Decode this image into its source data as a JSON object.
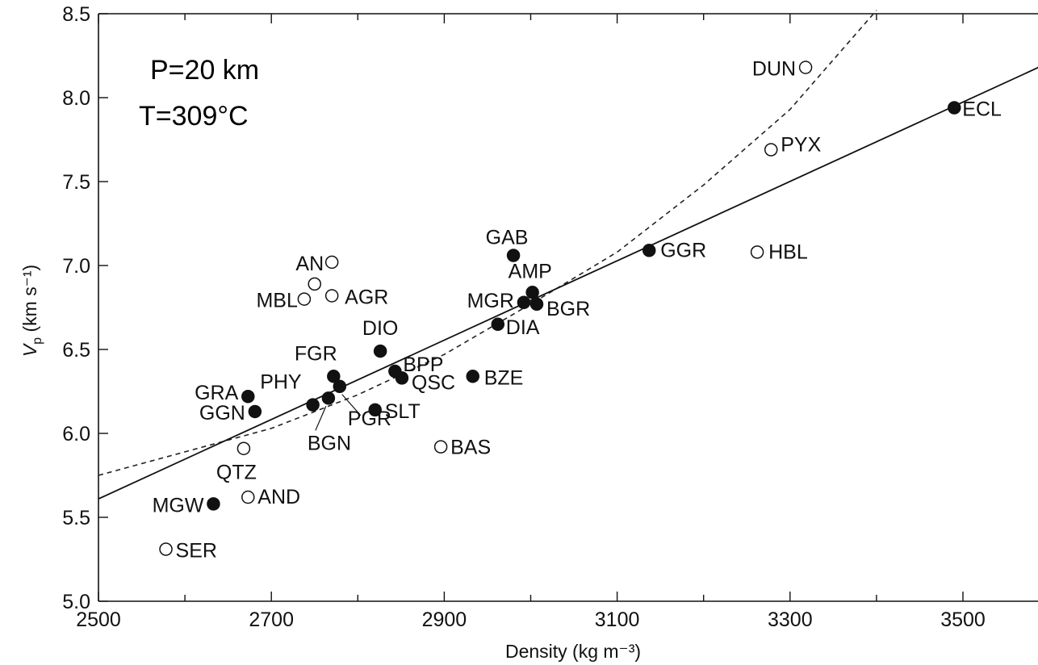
{
  "chart_data": {
    "type": "scatter",
    "xlabel": "Density (kg m⁻³)",
    "ylabel": "Vp (km s⁻¹)",
    "ylabel_main": "V",
    "ylabel_sub": "p",
    "ylabel_units": " (km s⁻¹)",
    "xlim": [
      2500,
      3600
    ],
    "ylim": [
      5.0,
      8.5
    ],
    "x_ticks": [
      2500,
      2700,
      2900,
      3100,
      3300,
      3500
    ],
    "y_ticks": [
      "5.0",
      "5.5",
      "6.0",
      "6.5",
      "7.0",
      "7.5",
      "8.0",
      "8.5"
    ],
    "annotations": [
      "P=20 km",
      "T=309°C"
    ],
    "grid": false,
    "legend": "none",
    "points": [
      {
        "label": "DUN",
        "x": 3318,
        "y": 8.18,
        "filled": false
      },
      {
        "label": "ECL",
        "x": 3490,
        "y": 7.94,
        "filled": true
      },
      {
        "label": "PYX",
        "x": 3278,
        "y": 7.69,
        "filled": false
      },
      {
        "label": "GAB",
        "x": 2980,
        "y": 7.06,
        "filled": true
      },
      {
        "label": "GGR",
        "x": 3137,
        "y": 7.09,
        "filled": true
      },
      {
        "label": "HBL",
        "x": 3262,
        "y": 7.08,
        "filled": false
      },
      {
        "label": "AN",
        "x": 2770,
        "y": 7.02,
        "filled": false
      },
      {
        "label": "AMP",
        "x": 3002,
        "y": 6.84,
        "filled": true
      },
      {
        "label": "MGR",
        "x": 2992,
        "y": 6.78,
        "filled": true
      },
      {
        "label": "BGR",
        "x": 3007,
        "y": 6.77,
        "filled": true
      },
      {
        "label": "",
        "x": 2750,
        "y": 6.89,
        "filled": false
      },
      {
        "label": "MBL",
        "x": 2738,
        "y": 6.8,
        "filled": false
      },
      {
        "label": "AGR",
        "x": 2770,
        "y": 6.82,
        "filled": false
      },
      {
        "label": "DIA",
        "x": 2962,
        "y": 6.65,
        "filled": true
      },
      {
        "label": "DIO",
        "x": 2826,
        "y": 6.49,
        "filled": true
      },
      {
        "label": "FGR",
        "x": 2772,
        "y": 6.34,
        "filled": true
      },
      {
        "label": "BPP",
        "x": 2843,
        "y": 6.37,
        "filled": true
      },
      {
        "label": "QSC",
        "x": 2851,
        "y": 6.33,
        "filled": true
      },
      {
        "label": "BZE",
        "x": 2933,
        "y": 6.34,
        "filled": true
      },
      {
        "label": "GRA",
        "x": 2673,
        "y": 6.22,
        "filled": true
      },
      {
        "label": "PHY",
        "x": 2748,
        "y": 6.17,
        "filled": true
      },
      {
        "label": "BGN",
        "x": 2766,
        "y": 6.21,
        "filled": true
      },
      {
        "label": "PGR",
        "x": 2779,
        "y": 6.28,
        "filled": true
      },
      {
        "label": "SLT",
        "x": 2820,
        "y": 6.14,
        "filled": true
      },
      {
        "label": "GGN",
        "x": 2681,
        "y": 6.13,
        "filled": true
      },
      {
        "label": "BAS",
        "x": 2896,
        "y": 5.92,
        "filled": false
      },
      {
        "label": "QTZ",
        "x": 2668,
        "y": 5.91,
        "filled": false
      },
      {
        "label": "MGW",
        "x": 2633,
        "y": 5.58,
        "filled": true
      },
      {
        "label": "AND",
        "x": 2673,
        "y": 5.62,
        "filled": false
      },
      {
        "label": "SER",
        "x": 2578,
        "y": 5.31,
        "filled": false
      }
    ],
    "fit_solid": {
      "style": "solid",
      "x": [
        2500,
        3600
      ],
      "y": [
        5.61,
        8.21
      ]
    },
    "fit_dashed": {
      "style": "dashed",
      "x": [
        2500,
        2600,
        2700,
        2800,
        2900,
        3000,
        3100,
        3200,
        3300,
        3400
      ],
      "y": [
        5.75,
        5.89,
        6.03,
        6.23,
        6.47,
        6.77,
        7.08,
        7.48,
        7.93,
        8.52
      ]
    }
  }
}
